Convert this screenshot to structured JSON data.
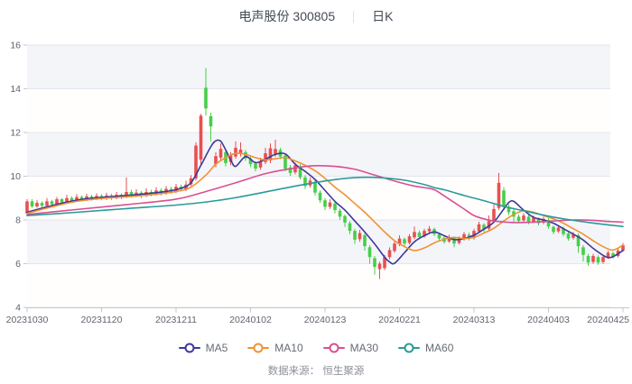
{
  "header": {
    "symbol": "电声股份 300805",
    "separator": "｜",
    "period": "日K"
  },
  "footer": {
    "source": "数据来源： 恒生聚源"
  },
  "chart_data": {
    "type": "candlestick",
    "title": "电声股份 300805 日K",
    "x_labels": [
      "20231030",
      "20231120",
      "20231211",
      "20240102",
      "20240123",
      "20240221",
      "20240313",
      "20240403",
      "20240425"
    ],
    "x_label_every": 15,
    "y_ticks": [
      4,
      6,
      8,
      10,
      12,
      14,
      16
    ],
    "ylim": [
      4,
      16
    ],
    "grid": true,
    "legend_position": "bottom",
    "up_color": "#e85050",
    "down_color": "#45cf49",
    "band_colors": [
      "#f4f5f9",
      "#fffefc"
    ],
    "grid_color": "#e4e5ed",
    "axis_color": "#c5c7cf",
    "tick_label_color": "#5f6570",
    "candles_ohlc_low_high": "each item is [open, close, low, high]",
    "candles": [
      [
        8.3,
        8.85,
        8.2,
        8.95
      ],
      [
        8.85,
        8.62,
        8.55,
        8.95
      ],
      [
        8.62,
        8.78,
        8.55,
        8.9
      ],
      [
        8.78,
        8.65,
        8.58,
        8.85
      ],
      [
        8.65,
        8.85,
        8.6,
        9.0
      ],
      [
        8.85,
        8.72,
        8.62,
        8.92
      ],
      [
        8.72,
        8.95,
        8.68,
        9.05
      ],
      [
        8.95,
        8.8,
        8.72,
        9.0
      ],
      [
        8.8,
        9.0,
        8.75,
        9.15
      ],
      [
        9.0,
        8.88,
        8.8,
        9.08
      ],
      [
        8.88,
        9.05,
        8.82,
        9.18
      ],
      [
        9.05,
        8.92,
        8.85,
        9.12
      ],
      [
        8.92,
        9.08,
        8.86,
        9.2
      ],
      [
        9.08,
        8.96,
        8.88,
        9.15
      ],
      [
        8.96,
        9.1,
        8.9,
        9.22
      ],
      [
        9.1,
        8.98,
        8.9,
        9.18
      ],
      [
        8.98,
        9.12,
        8.92,
        9.25
      ],
      [
        9.12,
        9.0,
        8.92,
        9.2
      ],
      [
        9.0,
        9.15,
        8.95,
        9.28
      ],
      [
        9.15,
        9.05,
        8.95,
        9.22
      ],
      [
        9.05,
        9.28,
        9.0,
        9.95
      ],
      [
        9.28,
        9.12,
        9.02,
        9.38
      ],
      [
        9.12,
        9.25,
        9.05,
        9.4
      ],
      [
        9.25,
        9.1,
        9.0,
        9.32
      ],
      [
        9.1,
        9.28,
        9.05,
        9.45
      ],
      [
        9.28,
        9.18,
        9.08,
        9.38
      ],
      [
        9.18,
        9.35,
        9.12,
        9.5
      ],
      [
        9.35,
        9.22,
        9.12,
        9.45
      ],
      [
        9.22,
        9.42,
        9.15,
        9.55
      ],
      [
        9.42,
        9.3,
        9.2,
        9.52
      ],
      [
        9.3,
        9.52,
        9.22,
        9.65
      ],
      [
        9.52,
        9.4,
        9.3,
        9.62
      ],
      [
        9.4,
        9.62,
        9.32,
        9.8
      ],
      [
        9.62,
        9.9,
        9.55,
        10.05
      ],
      [
        9.9,
        11.4,
        9.8,
        11.55
      ],
      [
        10.76,
        12.77,
        10.5,
        12.85
      ],
      [
        14.05,
        13.1,
        12.78,
        14.95
      ],
      [
        12.75,
        12.28,
        11.6,
        12.9
      ],
      [
        10.55,
        10.92,
        10.4,
        11.1
      ],
      [
        10.85,
        11.25,
        10.7,
        11.5
      ],
      [
        11.1,
        10.6,
        10.45,
        11.2
      ],
      [
        10.65,
        10.95,
        10.5,
        11.1
      ],
      [
        10.9,
        11.3,
        10.8,
        11.6
      ],
      [
        11.05,
        11.22,
        10.9,
        11.55
      ],
      [
        11.1,
        10.82,
        10.7,
        11.2
      ],
      [
        10.8,
        10.55,
        10.42,
        10.9
      ],
      [
        10.58,
        10.35,
        10.22,
        10.68
      ],
      [
        10.4,
        10.7,
        10.3,
        10.85
      ],
      [
        10.65,
        11.05,
        10.55,
        11.3
      ],
      [
        10.72,
        11.28,
        10.6,
        11.5
      ],
      [
        11.0,
        11.25,
        10.88,
        11.67
      ],
      [
        11.2,
        10.9,
        10.78,
        11.3
      ],
      [
        10.95,
        10.35,
        10.22,
        11.05
      ],
      [
        10.4,
        10.15,
        10.02,
        10.52
      ],
      [
        10.18,
        10.5,
        10.08,
        10.62
      ],
      [
        10.45,
        9.95,
        9.85,
        10.55
      ],
      [
        9.95,
        9.55,
        9.42,
        10.05
      ],
      [
        9.58,
        9.8,
        9.48,
        9.95
      ],
      [
        9.75,
        9.25,
        9.12,
        9.85
      ],
      [
        9.25,
        8.9,
        8.78,
        9.35
      ],
      [
        8.9,
        8.6,
        8.45,
        9.0
      ],
      [
        8.6,
        8.8,
        8.5,
        8.95
      ],
      [
        8.75,
        8.45,
        8.3,
        8.85
      ],
      [
        8.42,
        8.15,
        8.0,
        8.52
      ],
      [
        8.18,
        7.88,
        7.68,
        8.25
      ],
      [
        7.85,
        7.5,
        7.35,
        7.95
      ],
      [
        7.5,
        7.1,
        6.9,
        7.6
      ],
      [
        7.12,
        7.4,
        7.0,
        7.55
      ],
      [
        7.3,
        6.8,
        6.6,
        7.4
      ],
      [
        6.75,
        6.3,
        6.0,
        6.85
      ],
      [
        6.25,
        5.85,
        5.5,
        6.35
      ],
      [
        5.75,
        6.0,
        5.3,
        6.1
      ],
      [
        5.8,
        6.3,
        5.7,
        6.4
      ],
      [
        6.3,
        6.62,
        6.2,
        6.75
      ],
      [
        6.58,
        6.92,
        6.5,
        7.05
      ],
      [
        6.88,
        7.15,
        6.8,
        7.3
      ],
      [
        7.12,
        6.92,
        6.82,
        7.2
      ],
      [
        6.95,
        7.25,
        6.88,
        7.35
      ],
      [
        7.2,
        7.45,
        7.12,
        7.7
      ],
      [
        7.42,
        7.22,
        7.12,
        7.52
      ],
      [
        7.25,
        7.5,
        7.18,
        7.6
      ],
      [
        7.48,
        7.6,
        7.38,
        7.72
      ],
      [
        7.58,
        7.35,
        7.26,
        7.65
      ],
      [
        7.35,
        7.15,
        7.05,
        7.42
      ],
      [
        7.18,
        7.0,
        6.92,
        7.28
      ],
      [
        7.02,
        7.22,
        6.95,
        7.32
      ],
      [
        7.18,
        6.92,
        6.75,
        7.25
      ],
      [
        6.95,
        7.15,
        6.88,
        7.25
      ],
      [
        7.12,
        7.35,
        7.05,
        7.45
      ],
      [
        7.32,
        7.15,
        7.06,
        7.42
      ],
      [
        7.18,
        7.5,
        7.1,
        7.6
      ],
      [
        7.48,
        7.8,
        7.4,
        7.92
      ],
      [
        7.78,
        7.55,
        7.45,
        7.85
      ],
      [
        7.6,
        7.95,
        7.52,
        8.2
      ],
      [
        7.95,
        8.5,
        7.88,
        8.7
      ],
      [
        8.55,
        9.7,
        8.45,
        10.15
      ],
      [
        9.35,
        8.6,
        8.45,
        9.5
      ],
      [
        8.6,
        8.35,
        8.22,
        8.72
      ],
      [
        8.4,
        8.15,
        7.9,
        8.5
      ],
      [
        8.15,
        7.95,
        7.85,
        8.25
      ],
      [
        7.98,
        8.2,
        7.9,
        8.32
      ],
      [
        8.15,
        7.9,
        7.8,
        8.25
      ],
      [
        7.92,
        8.1,
        7.85,
        8.2
      ],
      [
        8.05,
        7.85,
        7.75,
        8.12
      ],
      [
        7.88,
        8.05,
        7.8,
        8.15
      ],
      [
        8.0,
        7.7,
        7.6,
        8.08
      ],
      [
        7.68,
        7.45,
        7.35,
        7.75
      ],
      [
        7.48,
        7.65,
        7.4,
        7.75
      ],
      [
        7.62,
        7.35,
        7.25,
        7.7
      ],
      [
        7.38,
        7.15,
        7.05,
        7.45
      ],
      [
        7.18,
        7.35,
        7.1,
        7.45
      ],
      [
        7.3,
        6.8,
        6.5,
        7.38
      ],
      [
        6.75,
        6.4,
        6.1,
        6.85
      ],
      [
        6.35,
        6.05,
        5.9,
        6.45
      ],
      [
        6.08,
        6.35,
        6.0,
        6.45
      ],
      [
        6.3,
        6.05,
        5.95,
        6.38
      ],
      [
        6.08,
        6.3,
        6.0,
        6.4
      ],
      [
        6.3,
        6.5,
        6.22,
        6.6
      ],
      [
        6.48,
        6.3,
        6.22,
        6.55
      ],
      [
        6.35,
        6.6,
        6.28,
        6.7
      ],
      [
        6.6,
        6.85,
        6.55,
        6.95
      ]
    ],
    "ma_series": [
      {
        "name": "MA5",
        "color": "#3f3899",
        "points": [
          [
            0,
            8.35
          ],
          [
            4,
            8.6
          ],
          [
            8,
            8.82
          ],
          [
            12,
            8.97
          ],
          [
            16,
            9.05
          ],
          [
            20,
            9.12
          ],
          [
            24,
            9.2
          ],
          [
            28,
            9.3
          ],
          [
            31,
            9.45
          ],
          [
            33,
            9.7
          ],
          [
            35,
            10.5
          ],
          [
            37,
            11.35
          ],
          [
            38,
            11.62
          ],
          [
            39,
            11.6
          ],
          [
            40,
            11.2
          ],
          [
            41,
            10.75
          ],
          [
            42,
            10.45
          ],
          [
            44,
            10.9
          ],
          [
            46,
            10.62
          ],
          [
            48,
            10.78
          ],
          [
            50,
            11.0
          ],
          [
            52,
            11.02
          ],
          [
            54,
            10.55
          ],
          [
            56,
            10.22
          ],
          [
            58,
            9.85
          ],
          [
            60,
            9.35
          ],
          [
            62,
            8.85
          ],
          [
            64,
            8.45
          ],
          [
            66,
            7.95
          ],
          [
            68,
            7.45
          ],
          [
            70,
            6.9
          ],
          [
            72,
            6.3
          ],
          [
            73,
            6.08
          ],
          [
            74,
            6.02
          ],
          [
            76,
            6.5
          ],
          [
            78,
            7.0
          ],
          [
            80,
            7.28
          ],
          [
            82,
            7.45
          ],
          [
            84,
            7.28
          ],
          [
            86,
            7.1
          ],
          [
            88,
            7.15
          ],
          [
            90,
            7.3
          ],
          [
            92,
            7.58
          ],
          [
            94,
            7.9
          ],
          [
            96,
            8.5
          ],
          [
            97,
            8.8
          ],
          [
            98,
            8.85
          ],
          [
            100,
            8.45
          ],
          [
            102,
            8.12
          ],
          [
            104,
            8.0
          ],
          [
            106,
            7.85
          ],
          [
            108,
            7.6
          ],
          [
            110,
            7.35
          ],
          [
            112,
            7.08
          ],
          [
            114,
            6.7
          ],
          [
            116,
            6.38
          ],
          [
            117,
            6.28
          ],
          [
            118,
            6.32
          ],
          [
            120,
            6.6
          ]
        ]
      },
      {
        "name": "MA10",
        "color": "#ef9234",
        "points": [
          [
            0,
            8.3
          ],
          [
            5,
            8.6
          ],
          [
            10,
            8.85
          ],
          [
            15,
            8.98
          ],
          [
            20,
            9.06
          ],
          [
            25,
            9.15
          ],
          [
            30,
            9.3
          ],
          [
            33,
            9.5
          ],
          [
            36,
            10.05
          ],
          [
            38,
            10.55
          ],
          [
            40,
            10.85
          ],
          [
            42,
            11.05
          ],
          [
            44,
            11.0
          ],
          [
            46,
            10.85
          ],
          [
            48,
            10.75
          ],
          [
            50,
            10.8
          ],
          [
            52,
            10.85
          ],
          [
            54,
            10.7
          ],
          [
            56,
            10.5
          ],
          [
            58,
            10.25
          ],
          [
            60,
            9.9
          ],
          [
            62,
            9.5
          ],
          [
            64,
            9.15
          ],
          [
            66,
            8.75
          ],
          [
            68,
            8.35
          ],
          [
            70,
            7.9
          ],
          [
            72,
            7.45
          ],
          [
            74,
            7.05
          ],
          [
            76,
            6.78
          ],
          [
            78,
            6.6
          ],
          [
            80,
            6.72
          ],
          [
            82,
            6.95
          ],
          [
            84,
            7.12
          ],
          [
            86,
            7.2
          ],
          [
            88,
            7.15
          ],
          [
            90,
            7.2
          ],
          [
            92,
            7.4
          ],
          [
            94,
            7.62
          ],
          [
            96,
            7.95
          ],
          [
            98,
            8.25
          ],
          [
            100,
            8.42
          ],
          [
            102,
            8.35
          ],
          [
            104,
            8.2
          ],
          [
            106,
            8.05
          ],
          [
            108,
            7.85
          ],
          [
            110,
            7.6
          ],
          [
            112,
            7.35
          ],
          [
            114,
            7.05
          ],
          [
            116,
            6.78
          ],
          [
            118,
            6.62
          ],
          [
            120,
            6.85
          ]
        ]
      },
      {
        "name": "MA30",
        "color": "#d94f92",
        "points": [
          [
            0,
            8.25
          ],
          [
            10,
            8.48
          ],
          [
            20,
            8.7
          ],
          [
            30,
            8.95
          ],
          [
            36,
            9.3
          ],
          [
            42,
            9.7
          ],
          [
            48,
            10.12
          ],
          [
            54,
            10.38
          ],
          [
            58,
            10.48
          ],
          [
            62,
            10.45
          ],
          [
            66,
            10.32
          ],
          [
            70,
            10.05
          ],
          [
            74,
            9.78
          ],
          [
            78,
            9.55
          ],
          [
            80,
            9.48
          ],
          [
            82,
            9.38
          ],
          [
            84,
            9.1
          ],
          [
            86,
            8.8
          ],
          [
            88,
            8.5
          ],
          [
            90,
            8.2
          ],
          [
            92,
            8.05
          ],
          [
            94,
            7.95
          ],
          [
            98,
            7.88
          ],
          [
            102,
            7.9
          ],
          [
            106,
            7.95
          ],
          [
            110,
            8.0
          ],
          [
            114,
            7.98
          ],
          [
            117,
            7.93
          ],
          [
            120,
            7.9
          ]
        ]
      },
      {
        "name": "MA60",
        "color": "#2a9b9b",
        "points": [
          [
            0,
            8.2
          ],
          [
            10,
            8.35
          ],
          [
            20,
            8.52
          ],
          [
            30,
            8.68
          ],
          [
            36,
            8.82
          ],
          [
            42,
            9.02
          ],
          [
            48,
            9.28
          ],
          [
            54,
            9.55
          ],
          [
            60,
            9.78
          ],
          [
            64,
            9.9
          ],
          [
            68,
            9.95
          ],
          [
            72,
            9.92
          ],
          [
            76,
            9.82
          ],
          [
            80,
            9.62
          ],
          [
            82,
            9.48
          ],
          [
            84,
            9.38
          ],
          [
            88,
            9.12
          ],
          [
            92,
            8.88
          ],
          [
            96,
            8.62
          ],
          [
            100,
            8.42
          ],
          [
            104,
            8.22
          ],
          [
            108,
            8.05
          ],
          [
            112,
            7.92
          ],
          [
            116,
            7.8
          ],
          [
            120,
            7.7
          ]
        ]
      }
    ]
  }
}
